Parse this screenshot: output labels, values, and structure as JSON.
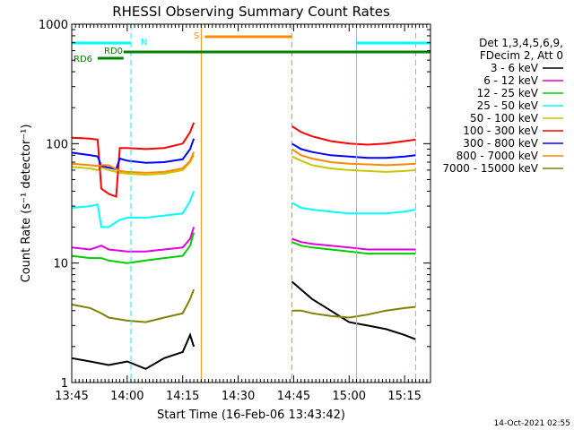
{
  "chart_data": {
    "type": "line",
    "title": "RHESSI Observing Summary Count Rates",
    "xlabel": "Start Time (16-Feb-06 13:43:42)",
    "ylabel": "Count Rate (s⁻¹ detector⁻¹)",
    "y_scale": "log",
    "ylim": [
      1,
      1000
    ],
    "xlim_minutes": [
      0,
      97
    ],
    "x_tick_labels": [
      "13:45",
      "14:00",
      "14:15",
      "14:30",
      "14:45",
      "15:00",
      "15:15"
    ],
    "x_tick_minutes": [
      0,
      15,
      30,
      45,
      60,
      75,
      90
    ],
    "y_tick_labels": [
      "1",
      "10",
      "100",
      "1000"
    ],
    "y_tick_values": [
      1,
      10,
      100,
      1000
    ],
    "legend_header": [
      "Det 1,3,4,5,6,9,",
      "FDecim 2, Att 0"
    ],
    "legend_position": "right",
    "footer_date": "14-Oct-2021 02:55",
    "data_gap_minutes": [
      33.5,
      59.5
    ],
    "series": [
      {
        "name": "3 - 6 keV",
        "color": "#000000",
        "segments": [
          [
            [
              0,
              1.6
            ],
            [
              5,
              1.5
            ],
            [
              10,
              1.4
            ],
            [
              15,
              1.5
            ],
            [
              20,
              1.3
            ],
            [
              25,
              1.6
            ],
            [
              30,
              1.8
            ],
            [
              32,
              2.5
            ],
            [
              33,
              2.0
            ]
          ],
          [
            [
              59.5,
              7.0
            ],
            [
              62,
              6.0
            ],
            [
              65,
              5.0
            ],
            [
              70,
              4.0
            ],
            [
              75,
              3.2
            ],
            [
              80,
              3.0
            ],
            [
              85,
              2.8
            ],
            [
              90,
              2.5
            ],
            [
              93,
              2.3
            ]
          ]
        ]
      },
      {
        "name": "6 - 12 keV",
        "color": "#e000e0",
        "segments": [
          [
            [
              0,
              13.5
            ],
            [
              5,
              13
            ],
            [
              8,
              14
            ],
            [
              10,
              13
            ],
            [
              15,
              12.5
            ],
            [
              20,
              12.5
            ],
            [
              25,
              13
            ],
            [
              30,
              13.5
            ],
            [
              32,
              16
            ],
            [
              33,
              20
            ]
          ],
          [
            [
              59.5,
              16
            ],
            [
              62,
              15
            ],
            [
              65,
              14.5
            ],
            [
              70,
              14
            ],
            [
              75,
              13.5
            ],
            [
              80,
              13
            ],
            [
              85,
              13
            ],
            [
              90,
              13
            ],
            [
              93,
              13
            ]
          ]
        ]
      },
      {
        "name": "12 - 25 keV",
        "color": "#00cc00",
        "segments": [
          [
            [
              0,
              11.5
            ],
            [
              5,
              11
            ],
            [
              8,
              11
            ],
            [
              10,
              10.5
            ],
            [
              15,
              10
            ],
            [
              20,
              10.5
            ],
            [
              25,
              11
            ],
            [
              30,
              11.5
            ],
            [
              32,
              14
            ],
            [
              33,
              18
            ]
          ],
          [
            [
              59.5,
              15
            ],
            [
              62,
              14
            ],
            [
              65,
              13.5
            ],
            [
              70,
              13
            ],
            [
              75,
              12.5
            ],
            [
              80,
              12
            ],
            [
              85,
              12
            ],
            [
              90,
              12
            ],
            [
              93,
              12
            ]
          ]
        ]
      },
      {
        "name": "25 - 50 keV",
        "color": "#00ffff",
        "segments": [
          [
            [
              0,
              29
            ],
            [
              5,
              30
            ],
            [
              7,
              31
            ],
            [
              8,
              20
            ],
            [
              10,
              20
            ],
            [
              13,
              23
            ],
            [
              15,
              24
            ],
            [
              20,
              24
            ],
            [
              25,
              25
            ],
            [
              30,
              26
            ],
            [
              32,
              33
            ],
            [
              33,
              40
            ]
          ],
          [
            [
              59.5,
              32
            ],
            [
              62,
              29
            ],
            [
              65,
              28
            ],
            [
              70,
              27
            ],
            [
              75,
              26
            ],
            [
              80,
              26
            ],
            [
              85,
              26
            ],
            [
              90,
              27
            ],
            [
              93,
              28
            ]
          ]
        ]
      },
      {
        "name": "50 - 100 keV",
        "color": "#c8c800",
        "segments": [
          [
            [
              0,
              64
            ],
            [
              5,
              62
            ],
            [
              7,
              60
            ],
            [
              8,
              63
            ],
            [
              10,
              60
            ],
            [
              13,
              57
            ],
            [
              15,
              56
            ],
            [
              20,
              55
            ],
            [
              25,
              56
            ],
            [
              30,
              60
            ],
            [
              32,
              70
            ],
            [
              33,
              80
            ]
          ],
          [
            [
              59.5,
              78
            ],
            [
              62,
              72
            ],
            [
              65,
              66
            ],
            [
              70,
              62
            ],
            [
              75,
              60
            ],
            [
              80,
              59
            ],
            [
              85,
              58
            ],
            [
              90,
              59
            ],
            [
              93,
              60
            ]
          ]
        ]
      },
      {
        "name": "100 - 300 keV",
        "color": "#ff0000",
        "segments": [
          [
            [
              0,
              112
            ],
            [
              5,
              110
            ],
            [
              7,
              108
            ],
            [
              8,
              42
            ],
            [
              10,
              38
            ],
            [
              12,
              36
            ],
            [
              13,
              92
            ],
            [
              15,
              92
            ],
            [
              20,
              90
            ],
            [
              25,
              92
            ],
            [
              30,
              100
            ],
            [
              32,
              125
            ],
            [
              33,
              150
            ]
          ],
          [
            [
              59.5,
              140
            ],
            [
              62,
              125
            ],
            [
              65,
              115
            ],
            [
              70,
              105
            ],
            [
              75,
              100
            ],
            [
              80,
              98
            ],
            [
              85,
              100
            ],
            [
              90,
              105
            ],
            [
              93,
              108
            ]
          ]
        ]
      },
      {
        "name": "300 - 800 keV",
        "color": "#0000ff",
        "segments": [
          [
            [
              0,
              84
            ],
            [
              5,
              80
            ],
            [
              7,
              78
            ],
            [
              8,
              65
            ],
            [
              10,
              63
            ],
            [
              12,
              61
            ],
            [
              13,
              75
            ],
            [
              15,
              72
            ],
            [
              20,
              69
            ],
            [
              25,
              70
            ],
            [
              30,
              74
            ],
            [
              32,
              90
            ],
            [
              33,
              110
            ]
          ],
          [
            [
              59.5,
              100
            ],
            [
              62,
              90
            ],
            [
              65,
              85
            ],
            [
              70,
              80
            ],
            [
              75,
              78
            ],
            [
              80,
              76
            ],
            [
              85,
              76
            ],
            [
              90,
              78
            ],
            [
              93,
              80
            ]
          ]
        ]
      },
      {
        "name": "800 - 7000 keV",
        "color": "#ff8800",
        "segments": [
          [
            [
              0,
              68
            ],
            [
              5,
              66
            ],
            [
              7,
              65
            ],
            [
              8,
              66
            ],
            [
              10,
              66
            ],
            [
              13,
              59
            ],
            [
              15,
              58
            ],
            [
              20,
              57
            ],
            [
              25,
              58
            ],
            [
              30,
              62
            ],
            [
              32,
              72
            ],
            [
              33,
              85
            ]
          ],
          [
            [
              59.5,
              90
            ],
            [
              62,
              80
            ],
            [
              65,
              75
            ],
            [
              70,
              70
            ],
            [
              75,
              68
            ],
            [
              80,
              67
            ],
            [
              85,
              66
            ],
            [
              90,
              67
            ],
            [
              93,
              68
            ]
          ]
        ]
      },
      {
        "name": "7000 - 15000 keV",
        "color": "#808000",
        "segments": [
          [
            [
              0,
              4.5
            ],
            [
              5,
              4.2
            ],
            [
              8,
              3.8
            ],
            [
              10,
              3.5
            ],
            [
              15,
              3.3
            ],
            [
              20,
              3.2
            ],
            [
              25,
              3.5
            ],
            [
              30,
              3.8
            ],
            [
              32,
              5
            ],
            [
              33,
              6
            ]
          ],
          [
            [
              59.5,
              4
            ],
            [
              62,
              4
            ],
            [
              65,
              3.8
            ],
            [
              70,
              3.6
            ],
            [
              75,
              3.5
            ],
            [
              80,
              3.7
            ],
            [
              85,
              4
            ],
            [
              90,
              4.2
            ],
            [
              93,
              4.3
            ]
          ]
        ]
      }
    ],
    "annotations": [
      {
        "label": "N",
        "color": "#00ffff"
      },
      {
        "label": "S",
        "color": "#ff8800"
      },
      {
        "label": "RD0",
        "color": "#008000"
      },
      {
        "label": "RD6",
        "color": "#008000"
      }
    ],
    "flag_bars": {
      "night": {
        "color": "#00ffff",
        "ranges": [
          [
            0,
            16
          ],
          [
            77,
            97
          ]
        ]
      },
      "saa": {
        "color": "#ff8800",
        "ranges": [
          [
            36,
            59.5
          ]
        ]
      },
      "decim0": {
        "color": "#008000",
        "ranges": [
          [
            14,
            97
          ]
        ]
      },
      "decim6": {
        "color": "#008000",
        "ranges": [
          [
            7,
            14
          ]
        ]
      }
    },
    "vertical_markers": [
      {
        "minute": 0,
        "color": "#00ffff",
        "style": "solid"
      },
      {
        "minute": 16,
        "color": "#00ffff",
        "style": "dashed"
      },
      {
        "minute": 35,
        "color": "#ff8800",
        "style": "solid"
      },
      {
        "minute": 59.5,
        "color": "#ff8800",
        "style": "dashed"
      },
      {
        "minute": 77,
        "color": "#00ffff",
        "style": "solid"
      },
      {
        "minute": 93,
        "color": "#00ffff",
        "style": "dashed"
      }
    ]
  }
}
